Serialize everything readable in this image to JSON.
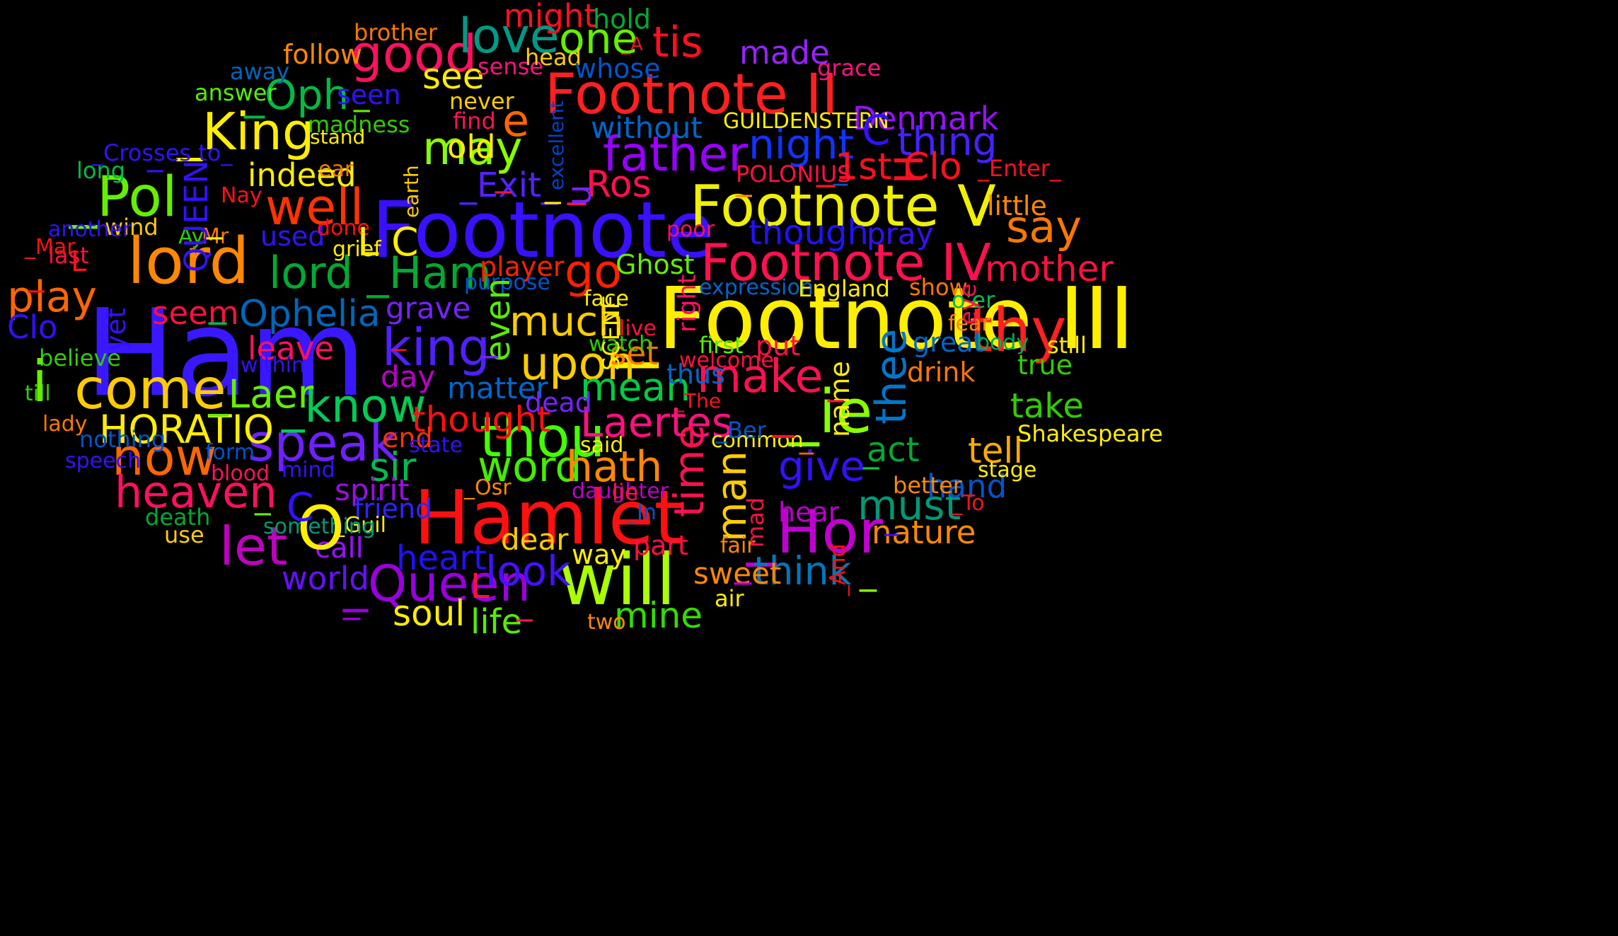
{
  "words": [
    {
      "text": "Ham",
      "color": "#3a18ff",
      "rotated": false
    },
    {
      "text": "_Footnote III",
      "color": "#ffee00",
      "rotated": false
    },
    {
      "text": "Footnote",
      "color": "#3a10ff",
      "rotated": false
    },
    {
      "text": "Hamlet",
      "color": "#ff1010",
      "rotated": false
    },
    {
      "text": "will",
      "color": "#aaff00",
      "rotated": false
    },
    {
      "text": "lord",
      "color": "#ff8800",
      "rotated": false
    },
    {
      "text": "Footnote V",
      "color": "#f0f000",
      "rotated": false
    },
    {
      "text": "Footnote II",
      "color": "#ff2020",
      "rotated": false
    },
    {
      "text": "_Hor",
      "color": "#c000d0",
      "rotated": false
    },
    {
      "text": "come",
      "color": "#ffcc00",
      "rotated": false
    },
    {
      "text": "_ie",
      "color": "#88ff00",
      "rotated": false
    },
    {
      "text": "_King",
      "color": "#ffee00",
      "rotated": false
    },
    {
      "text": "good",
      "color": "#ff1060",
      "rotated": false
    },
    {
      "text": "king",
      "color": "#5020ff",
      "rotated": false
    },
    {
      "text": "_Pol",
      "color": "#66ee00",
      "rotated": false
    },
    {
      "text": "Footnote IV",
      "color": "#ff1050",
      "rotated": false
    },
    {
      "text": "thou",
      "color": "#44ff00",
      "rotated": false
    },
    {
      "text": "_Queen",
      "color": "#9900dd",
      "rotated": false
    },
    {
      "text": "let",
      "color": "#c000c0",
      "rotated": false
    },
    {
      "text": "father",
      "color": "#9900ff",
      "rotated": false
    },
    {
      "text": "speak",
      "color": "#7020ff",
      "rotated": false
    },
    {
      "text": "love",
      "color": "#009988",
      "rotated": false
    },
    {
      "text": "thy",
      "color": "#ff2020",
      "rotated": false
    },
    {
      "text": "lord _Ham",
      "color": "#00aa33",
      "rotated": false
    },
    {
      "text": "now",
      "color": "#ff6600",
      "rotated": false
    },
    {
      "text": "well",
      "color": "#ff3300",
      "rotated": false
    },
    {
      "text": "Laertes",
      "color": "#ff1080",
      "rotated": false
    },
    {
      "text": "make",
      "color": "#ff1050",
      "rotated": false
    },
    {
      "text": "upon",
      "color": "#ffcc00",
      "rotated": false
    },
    {
      "text": "heaven",
      "color": "#ff1060",
      "rotated": false
    },
    {
      "text": "Ophelia",
      "color": "#0066bb",
      "rotated": false
    },
    {
      "text": "_Oph",
      "color": "#00bb44",
      "rotated": false
    },
    {
      "text": "tis",
      "color": "#ff1020",
      "rotated": false
    },
    {
      "text": "one",
      "color": "#66ee00",
      "rotated": false
    },
    {
      "text": "may",
      "color": "#88ff00",
      "rotated": false
    },
    {
      "text": "word",
      "color": "#44ee00",
      "rotated": false
    },
    {
      "text": "mean",
      "color": "#00cc44",
      "rotated": false
    },
    {
      "text": "hath",
      "color": "#ff8800",
      "rotated": false
    },
    {
      "text": "give",
      "color": "#3311ff",
      "rotated": false
    },
    {
      "text": "_know",
      "color": "#00cc55",
      "rotated": false
    },
    {
      "text": "go",
      "color": "#ff2000",
      "rotated": false
    },
    {
      "text": "play",
      "color": "#ff6600",
      "rotated": false
    },
    {
      "text": "HORATIO",
      "color": "#ffee00",
      "rotated": false
    },
    {
      "text": "look",
      "color": "#4411ff",
      "rotated": false
    },
    {
      "text": "think",
      "color": "#0077bb",
      "rotated": false
    },
    {
      "text": "must",
      "color": "#009977",
      "rotated": false
    },
    {
      "text": "sir",
      "color": "#00bb55",
      "rotated": false
    },
    {
      "text": "time",
      "color": "#ff1050",
      "rotated": true
    },
    {
      "text": "thee",
      "color": "#0077cc",
      "rotated": true
    },
    {
      "text": "man",
      "color": "#ffcc00",
      "rotated": true
    },
    {
      "text": "night",
      "color": "#1133ff",
      "rotated": false
    },
    {
      "text": "say",
      "color": "#ff7700",
      "rotated": false
    },
    {
      "text": "mother",
      "color": "#ff1040",
      "rotated": false
    },
    {
      "text": "thing",
      "color": "#4422ff",
      "rotated": false
    },
    {
      "text": "_1st Clo",
      "color": "#ff1020",
      "rotated": false
    },
    {
      "text": "see",
      "color": "#ffee00",
      "rotated": false
    },
    {
      "text": "much",
      "color": "#ffcc00",
      "rotated": false
    },
    {
      "text": "_Laer",
      "color": "#66ee00",
      "rotated": false
    },
    {
      "text": "Clo",
      "color": "#3311ff",
      "rotated": false
    },
    {
      "text": "leave",
      "color": "#ff1060",
      "rotated": false
    },
    {
      "text": "thought",
      "color": "#ff1010",
      "rotated": false
    },
    {
      "text": "tell",
      "color": "#ffaa00",
      "rotated": false
    },
    {
      "text": "act",
      "color": "#00aa33",
      "rotated": false
    },
    {
      "text": "hand",
      "color": "#0055cc",
      "rotated": false
    },
    {
      "text": "take",
      "color": "#33cc00",
      "rotated": false
    },
    {
      "text": "soul",
      "color": "#ffee00",
      "rotated": false
    },
    {
      "text": "mine",
      "color": "#33dd00",
      "rotated": false
    },
    {
      "text": "life",
      "color": "#55ee00",
      "rotated": false
    },
    {
      "text": "heart",
      "color": "#2211ff",
      "rotated": false
    },
    {
      "text": "world",
      "color": "#6611ff",
      "rotated": false
    },
    {
      "text": "spirit",
      "color": "#9911dd",
      "rotated": false
    },
    {
      "text": "grave",
      "color": "#7722ff",
      "rotated": false
    },
    {
      "text": "indeed",
      "color": "#ffee00",
      "rotated": false
    },
    {
      "text": "old",
      "color": "#ffee00",
      "rotated": false
    },
    {
      "text": "_Ros",
      "color": "#ff1050",
      "rotated": false
    },
    {
      "text": "_Exit_",
      "color": "#5522ff",
      "rotated": false
    },
    {
      "text": "though",
      "color": "#2211ff",
      "rotated": false
    },
    {
      "text": "without",
      "color": "#0066cc",
      "rotated": false
    },
    {
      "text": "Denmark",
      "color": "#9911ff",
      "rotated": false
    },
    {
      "text": "made",
      "color": "#9922ff",
      "rotated": false
    },
    {
      "text": "might",
      "color": "#ff1020",
      "rotated": false
    },
    {
      "text": "hold",
      "color": "#00aa33",
      "rotated": false
    },
    {
      "text": "follow",
      "color": "#ff8800",
      "rotated": false
    },
    {
      "text": "seen",
      "color": "#3311ff",
      "rotated": false
    },
    {
      "text": "matter",
      "color": "#0066cc",
      "rotated": false
    },
    {
      "text": "dead",
      "color": "#7722ff",
      "rotated": false
    },
    {
      "text": "day",
      "color": "#bb00cc",
      "rotated": false
    },
    {
      "text": "used",
      "color": "#3311ff",
      "rotated": false
    },
    {
      "text": "set",
      "color": "#ff7700",
      "rotated": false
    },
    {
      "text": "thus",
      "color": "#0066cc",
      "rotated": false
    },
    {
      "text": "put",
      "color": "#ff1040",
      "rotated": false
    },
    {
      "text": "first",
      "color": "#55ee00",
      "rotated": false
    },
    {
      "text": "drink",
      "color": "#ff7700",
      "rotated": false
    },
    {
      "text": "great",
      "color": "#0066cc",
      "rotated": false
    },
    {
      "text": "true",
      "color": "#33cc00",
      "rotated": false
    },
    {
      "text": "pray",
      "color": "#3311ff",
      "rotated": false
    },
    {
      "text": "dear",
      "color": "#ffcc00",
      "rotated": false
    },
    {
      "text": "call",
      "color": "#9911ff",
      "rotated": false
    },
    {
      "text": "friend",
      "color": "#3322ff",
      "rotated": false
    },
    {
      "text": "sweet",
      "color": "#ff8800",
      "rotated": false
    },
    {
      "text": "part",
      "color": "#ff1040",
      "rotated": false
    },
    {
      "text": "nature",
      "color": "#ff8800",
      "rotated": false
    },
    {
      "text": "hear",
      "color": "#bb00cc",
      "rotated": false
    },
    {
      "text": "end",
      "color": "#ff3300",
      "rotated": false
    },
    {
      "text": "little",
      "color": "#ff8800",
      "rotated": false
    },
    {
      "text": "Ghost",
      "color": "#66ee00",
      "rotated": false
    },
    {
      "text": "player",
      "color": "#ff2000",
      "rotated": false
    },
    {
      "text": "use",
      "color": "#ffcc00",
      "rotated": false
    },
    {
      "text": "death",
      "color": "#00aa33",
      "rotated": false
    },
    {
      "text": "nothing",
      "color": "#0055cc",
      "rotated": false
    },
    {
      "text": "long",
      "color": "#00bb44",
      "rotated": false
    },
    {
      "text": "madness",
      "color": "#33cc00",
      "rotated": false
    },
    {
      "text": "answer",
      "color": "#55ee00",
      "rotated": false
    },
    {
      "text": "away",
      "color": "#0066bb",
      "rotated": false
    },
    {
      "text": "brother",
      "color": "#ff7700",
      "rotated": false
    },
    {
      "text": "sense",
      "color": "#ff1080",
      "rotated": false
    },
    {
      "text": "head",
      "color": "#ffcc00",
      "rotated": false
    },
    {
      "text": "never",
      "color": "#ffcc00",
      "rotated": false
    },
    {
      "text": "find",
      "color": "#ff1060",
      "rotated": false
    },
    {
      "text": "grace",
      "color": "#ff1080",
      "rotated": false
    },
    {
      "text": "whose",
      "color": "#0055cc",
      "rotated": false
    },
    {
      "text": "_Crosses to_",
      "color": "#3311ff",
      "rotated": false
    },
    {
      "text": "stand",
      "color": "#ffee00",
      "rotated": false
    },
    {
      "text": "ear",
      "color": "#ff7700",
      "rotated": false
    },
    {
      "text": "Nay",
      "color": "#ff1020",
      "rotated": false
    },
    {
      "text": "done",
      "color": "#ff1010",
      "rotated": false
    },
    {
      "text": "grief",
      "color": "#ffee00",
      "rotated": false
    },
    {
      "text": "wind",
      "color": "#ffcc00",
      "rotated": false
    },
    {
      "text": "another",
      "color": "#3311ff",
      "rotated": false
    },
    {
      "text": "last",
      "color": "#ff1040",
      "rotated": false
    },
    {
      "text": "Ay",
      "color": "#33cc00",
      "rotated": false
    },
    {
      "text": "Mr",
      "color": "#ff7700",
      "rotated": false
    },
    {
      "text": "poor",
      "color": "#ff1060",
      "rotated": false
    },
    {
      "text": "purpose",
      "color": "#0055cc",
      "rotated": false
    },
    {
      "text": "expression",
      "color": "#0066cc",
      "rotated": false
    },
    {
      "text": "England",
      "color": "#ffee00",
      "rotated": false
    },
    {
      "text": "show",
      "color": "#ff7700",
      "rotated": false
    },
    {
      "text": "o'er",
      "color": "#00bb55",
      "rotated": false
    },
    {
      "text": "fear",
      "color": "#ff8800",
      "rotated": false
    },
    {
      "text": "body",
      "color": "#00aa55",
      "rotated": false
    },
    {
      "text": "still",
      "color": "#ffee00",
      "rotated": false
    },
    {
      "text": "face",
      "color": "#ffee00",
      "rotated": false
    },
    {
      "text": "live",
      "color": "#ff1040",
      "rotated": false
    },
    {
      "text": "watch",
      "color": "#33cc00",
      "rotated": false
    },
    {
      "text": "welcome",
      "color": "#ff1040",
      "rotated": false
    },
    {
      "text": "within",
      "color": "#3311ff",
      "rotated": false
    },
    {
      "text": "believe",
      "color": "#33cc00",
      "rotated": false
    },
    {
      "text": "till",
      "color": "#33cc00",
      "rotated": false
    },
    {
      "text": "lady",
      "color": "#ff7700",
      "rotated": false
    },
    {
      "text": "state",
      "color": "#3311ff",
      "rotated": false
    },
    {
      "text": "form",
      "color": "#0055cc",
      "rotated": false
    },
    {
      "text": "speech",
      "color": "#3311ff",
      "rotated": false
    },
    {
      "text": "blood",
      "color": "#ff1060",
      "rotated": false
    },
    {
      "text": "mind",
      "color": "#3311ff",
      "rotated": false
    },
    {
      "text": "_Osr",
      "color": "#ff8800",
      "rotated": false
    },
    {
      "text": "_Guil",
      "color": "#ffee00",
      "rotated": false
    },
    {
      "text": "something",
      "color": "#009977",
      "rotated": false
    },
    {
      "text": "two",
      "color": "#ff8800",
      "rotated": false
    },
    {
      "text": "way",
      "color": "#ffee00",
      "rotated": false
    },
    {
      "text": "fair",
      "color": "#ff8800",
      "rotated": false
    },
    {
      "text": "air",
      "color": "#ffee00",
      "rotated": false
    },
    {
      "text": "daughter",
      "color": "#bb00cc",
      "rotated": false
    },
    {
      "text": "lie",
      "color": "#ff1040",
      "rotated": false
    },
    {
      "text": "_In",
      "color": "#0055cc",
      "rotated": false
    },
    {
      "text": "said",
      "color": "#ffee00",
      "rotated": false
    },
    {
      "text": "common",
      "color": "#ffee00",
      "rotated": false
    },
    {
      "text": "_Ber",
      "color": "#0055cc",
      "rotated": false
    },
    {
      "text": "Shakespeare",
      "color": "#ffee00",
      "rotated": false
    },
    {
      "text": "stage",
      "color": "#ffee00",
      "rotated": false
    },
    {
      "text": "better",
      "color": "#ff8800",
      "rotated": false
    },
    {
      "text": "_To",
      "color": "#ff1020",
      "rotated": false
    },
    {
      "text": "_The",
      "color": "#ff1020",
      "rotated": false
    },
    {
      "text": "GUILDENSTERN",
      "color": "#ffee00",
      "rotated": false
    },
    {
      "text": "POLONIUS",
      "color": "#ff1040",
      "rotated": false
    },
    {
      "text": "_Enter_",
      "color": "#ff1020",
      "rotated": false
    },
    {
      "text": "seem",
      "color": "#ff1040",
      "rotated": false
    },
    {
      "text": "_Mar",
      "color": "#ff1010",
      "rotated": false
    },
    {
      "text": "_A",
      "color": "#ff1020",
      "rotated": false
    },
    {
      "text": "L C",
      "color": "#ffee00",
      "rotated": false
    },
    {
      "text": "QUEEN",
      "color": "#3311ff",
      "rotated": true
    },
    {
      "text": "yet",
      "color": "#3311ff",
      "rotated": true
    },
    {
      "text": "earth",
      "color": "#ffcc00",
      "rotated": true
    },
    {
      "text": "excellent",
      "color": "#0044cc",
      "rotated": true
    },
    {
      "text": "name",
      "color": "#ffee00",
      "rotated": true
    },
    {
      "text": "eye",
      "color": "#ff1050",
      "rotated": true
    },
    {
      "text": "right",
      "color": "#ff1060",
      "rotated": true
    },
    {
      "text": "SCENE",
      "color": "#ffee00",
      "rotated": true
    },
    {
      "text": "mad",
      "color": "#ff1040",
      "rotated": true
    },
    {
      "text": "_And",
      "color": "#ff1010",
      "rotated": true
    },
    {
      "text": "even",
      "color": "#55ee00",
      "rotated": true
    },
    {
      "text": "O",
      "color": "#ffee00",
      "rotated": false
    },
    {
      "text": "e",
      "color": "#ff6600",
      "rotated": false
    },
    {
      "text": "C",
      "color": "#3311ff",
      "rotated": false
    },
    {
      "text": "C",
      "color": "#3311ff",
      "rotated": false
    },
    {
      "text": "H",
      "color": "#ff1020",
      "rotated": true
    },
    {
      "text": "L",
      "color": "#ff1020",
      "rotated": false
    },
    {
      "text": "L",
      "color": "#ff1040",
      "rotated": false
    },
    {
      "text": "u",
      "color": "#7722ff",
      "rotated": true
    },
    {
      "text": "i",
      "color": "#66ee00",
      "rotated": false
    },
    {
      "text": "_",
      "color": "#3311ff",
      "rotated": false
    },
    {
      "text": "_",
      "color": "#ffee00",
      "rotated": false
    },
    {
      "text": "_",
      "color": "#ffee00",
      "rotated": false
    },
    {
      "text": "_",
      "color": "#66ee00",
      "rotated": false
    },
    {
      "text": "_",
      "color": "#00bb44",
      "rotated": false
    },
    {
      "text": "_",
      "color": "#ff1010",
      "rotated": false
    },
    {
      "text": "_",
      "color": "#ff1040",
      "rotated": false
    },
    {
      "text": "_",
      "color": "#ff1020",
      "rotated": false
    },
    {
      "text": "_",
      "color": "#7722ff",
      "rotated": false
    },
    {
      "text": "_",
      "color": "#9900dd",
      "rotated": false
    },
    {
      "text": "_",
      "color": "#88ff00",
      "rotated": false
    },
    {
      "text": "_",
      "color": "#ff1040",
      "rotated": false
    },
    {
      "text": "_",
      "color": "#c000d0",
      "rotated": false
    },
    {
      "text": "_",
      "color": "#00cc44",
      "rotated": false
    },
    {
      "text": "_",
      "color": "#ff1060",
      "rotated": false
    },
    {
      "text": "_",
      "color": "#66ee00",
      "rotated": false
    },
    {
      "text": "_",
      "color": "#ff6600",
      "rotated": false
    },
    {
      "text": "_",
      "color": "#ffee00",
      "rotated": false
    },
    {
      "text": "_",
      "color": "#3311ff",
      "rotated": false
    },
    {
      "text": "_",
      "color": "#0055cc",
      "rotated": false
    },
    {
      "text": "_",
      "color": "#ff8800",
      "rotated": false
    },
    {
      "text": "_",
      "color": "#ff1020",
      "rotated": false
    },
    {
      "text": "o",
      "color": "#ff1010",
      "rotated": false
    }
  ]
}
